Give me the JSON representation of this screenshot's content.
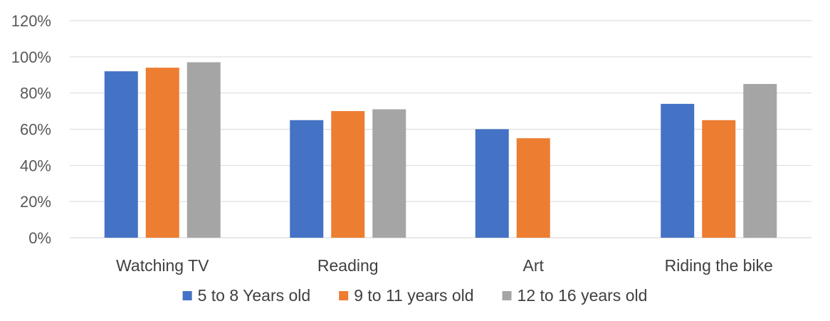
{
  "chart_data": {
    "type": "bar",
    "title": "",
    "xlabel": "",
    "ylabel": "",
    "categories": [
      "Watching TV",
      "Reading",
      "Art",
      "Riding the bike"
    ],
    "series": [
      {
        "name": "5 to 8 Years old",
        "color": "#4472C4",
        "values": [
          92,
          65,
          60,
          74
        ]
      },
      {
        "name": "9 to 11 years old",
        "color": "#ED7D31",
        "values": [
          94,
          70,
          55,
          65
        ]
      },
      {
        "name": "12 to 16 years old",
        "color": "#A5A5A5",
        "values": [
          97,
          71,
          null,
          85
        ]
      }
    ],
    "ylim": [
      0,
      120
    ],
    "yticks": [
      0,
      20,
      40,
      60,
      80,
      100,
      120
    ],
    "ytick_labels": [
      "0%",
      "20%",
      "40%",
      "60%",
      "80%",
      "100%",
      "120%"
    ],
    "grid": true,
    "legend_position": "bottom"
  }
}
